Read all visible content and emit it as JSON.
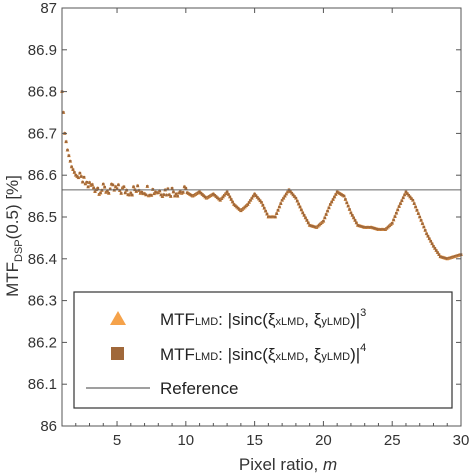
{
  "chart_data": {
    "type": "scatter",
    "xlabel": "Pixel ratio, ",
    "xlabel_var": "m",
    "ylabel_main": "MTF",
    "ylabel_sub": "DSP",
    "ylabel_tail": "(0.5) [%]",
    "xlim": [
      1,
      30
    ],
    "ylim": [
      86.0,
      87.0
    ],
    "xticks": [
      5,
      10,
      15,
      20,
      25,
      30
    ],
    "yticks": [
      86,
      86.1,
      86.2,
      86.3,
      86.4,
      86.5,
      86.6,
      86.7,
      86.8,
      86.9,
      87
    ],
    "xtick_labels": [
      "5",
      "10",
      "15",
      "20",
      "25",
      "30"
    ],
    "ytick_labels": [
      "86",
      "86.1",
      "86.2",
      "86.3",
      "86.4",
      "86.5",
      "86.6",
      "86.7",
      "86.8",
      "86.9",
      "87"
    ],
    "reference": {
      "name": "Reference",
      "y": 86.565,
      "color": "#666666"
    },
    "series": [
      {
        "name": "sinc3",
        "marker": "triangle",
        "color": "#f5a24a",
        "legend": {
          "main": "MTF",
          "sub": "LMD",
          "formula": ": |sinc(ξ",
          "xsub": "xLMD",
          "mid": ", ξ",
          "ysub": "yLMD",
          "close": ")|",
          "power": "3"
        }
      },
      {
        "name": "sinc4",
        "marker": "square",
        "color": "#a0683a",
        "legend": {
          "main": "MTF",
          "sub": "LMD",
          "formula": ": |sinc(ξ",
          "xsub": "xLMD",
          "mid": ", ξ",
          "ysub": "yLMD",
          "close": ")|",
          "power": "4"
        }
      }
    ],
    "curve_points": [
      [
        1.0,
        86.8
      ],
      [
        1.1,
        86.75
      ],
      [
        1.2,
        86.7
      ],
      [
        1.4,
        86.66
      ],
      [
        1.7,
        86.62
      ],
      [
        2.0,
        86.6
      ],
      [
        2.5,
        86.585
      ],
      [
        3.0,
        86.575
      ],
      [
        3.5,
        86.57
      ],
      [
        4.0,
        86.565
      ],
      [
        5.0,
        86.565
      ],
      [
        6.0,
        86.563
      ],
      [
        7.0,
        86.565
      ],
      [
        8.0,
        86.562
      ],
      [
        9.0,
        86.562
      ],
      [
        10.0,
        86.56
      ],
      [
        10.5,
        86.55
      ],
      [
        11.0,
        86.56
      ],
      [
        11.5,
        86.545
      ],
      [
        12.0,
        86.555
      ],
      [
        12.5,
        86.54
      ],
      [
        13.0,
        86.56
      ],
      [
        13.5,
        86.53
      ],
      [
        14.0,
        86.515
      ],
      [
        14.5,
        86.53
      ],
      [
        15.0,
        86.555
      ],
      [
        15.5,
        86.535
      ],
      [
        16.0,
        86.5
      ],
      [
        16.5,
        86.5
      ],
      [
        17.0,
        86.54
      ],
      [
        17.5,
        86.565
      ],
      [
        18.0,
        86.545
      ],
      [
        18.5,
        86.51
      ],
      [
        19.0,
        86.48
      ],
      [
        19.5,
        86.475
      ],
      [
        20.0,
        86.49
      ],
      [
        20.5,
        86.53
      ],
      [
        21.0,
        86.56
      ],
      [
        21.5,
        86.55
      ],
      [
        22.0,
        86.51
      ],
      [
        22.5,
        86.48
      ],
      [
        23.0,
        86.475
      ],
      [
        23.5,
        86.475
      ],
      [
        24.0,
        86.47
      ],
      [
        24.5,
        86.47
      ],
      [
        25.0,
        86.485
      ],
      [
        25.5,
        86.525
      ],
      [
        26.0,
        86.56
      ],
      [
        26.5,
        86.54
      ],
      [
        27.0,
        86.5
      ],
      [
        27.5,
        86.46
      ],
      [
        28.0,
        86.43
      ],
      [
        28.5,
        86.405
      ],
      [
        29.0,
        86.4
      ],
      [
        29.5,
        86.405
      ],
      [
        30.0,
        86.41
      ]
    ]
  }
}
